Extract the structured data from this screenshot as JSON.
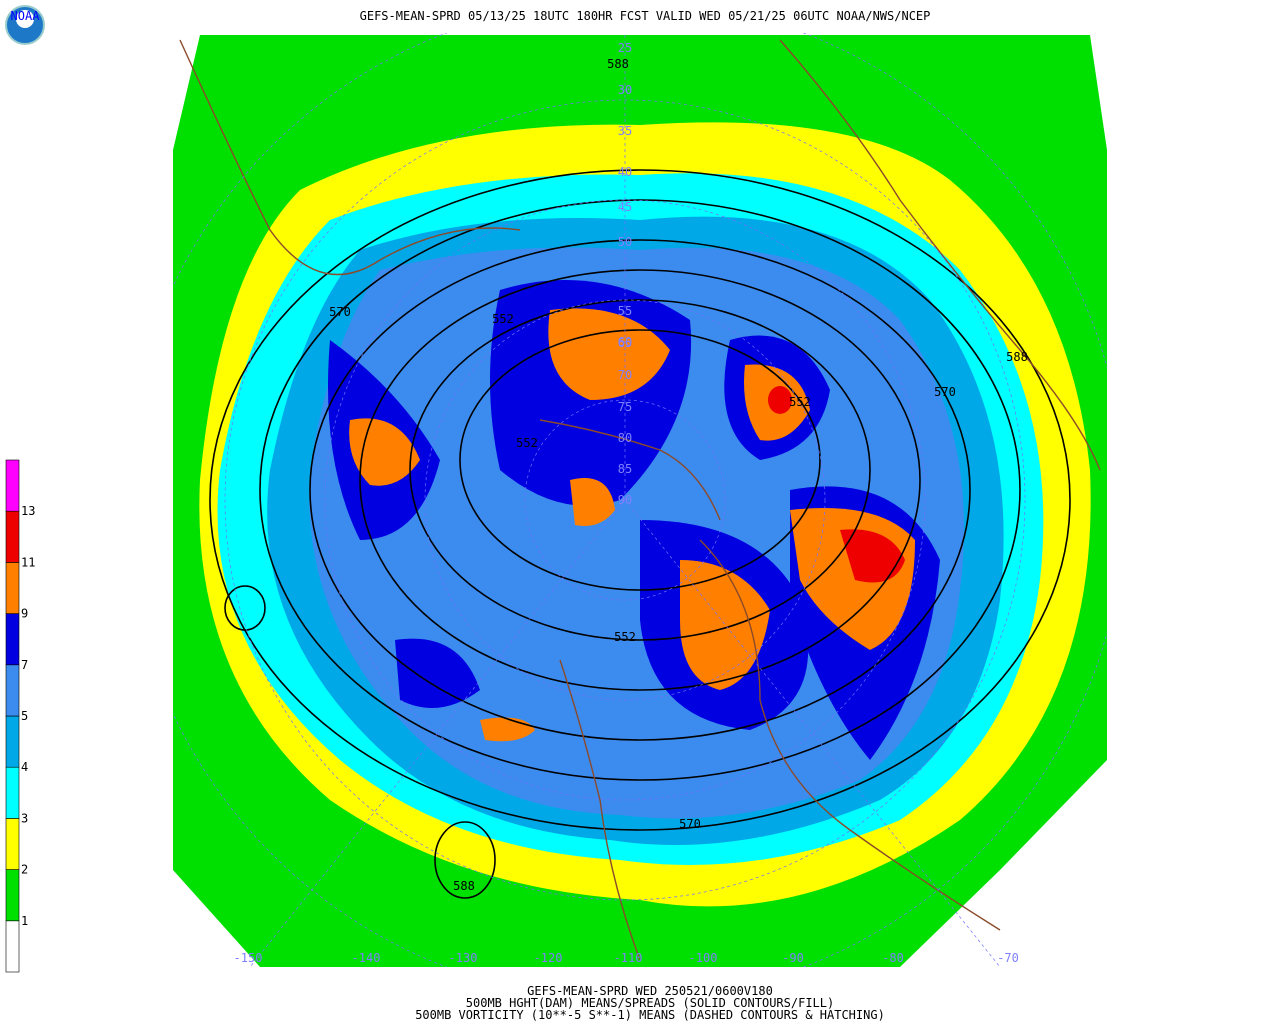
{
  "header": {
    "title": "GEFS-MEAN-SPRD 05/13/25 18UTC 180HR FCST VALID WED 05/21/25 06UTC NOAA/NWS/NCEP",
    "logo_text": "NOAA"
  },
  "colorbar": {
    "ticks": [
      1,
      2,
      3,
      4,
      5,
      7,
      9,
      11,
      13
    ],
    "colors": [
      "#ffffff",
      "#00e000",
      "#ffff00",
      "#00ffff",
      "#00a8e8",
      "#3c8cf0",
      "#0000e0",
      "#ff8000",
      "#ee0000",
      "#ff00ff"
    ]
  },
  "contour_labels": [
    "588",
    "588",
    "588",
    "570",
    "570",
    "570",
    "552",
    "552",
    "552",
    "552"
  ],
  "latitude_labels": [
    "25",
    "30",
    "35",
    "40",
    "45",
    "50",
    "55",
    "60",
    "65",
    "70",
    "75",
    "80",
    "85",
    "90"
  ],
  "longitude_labels": [
    "-150",
    "-140",
    "-130",
    "-120",
    "-110",
    "-100",
    "-90",
    "-80",
    "-70"
  ],
  "footer": {
    "lines": [
      "GEFS-MEAN-SPRD WED 250521/0600V180",
      "500MB HGHT(DAM) MEANS/SPREADS (SOLID CONTOURS/FILL)",
      "500MB VORTICITY (10**-5 S**-1) MEANS (DASHED CONTOURS & HATCHING)"
    ]
  }
}
